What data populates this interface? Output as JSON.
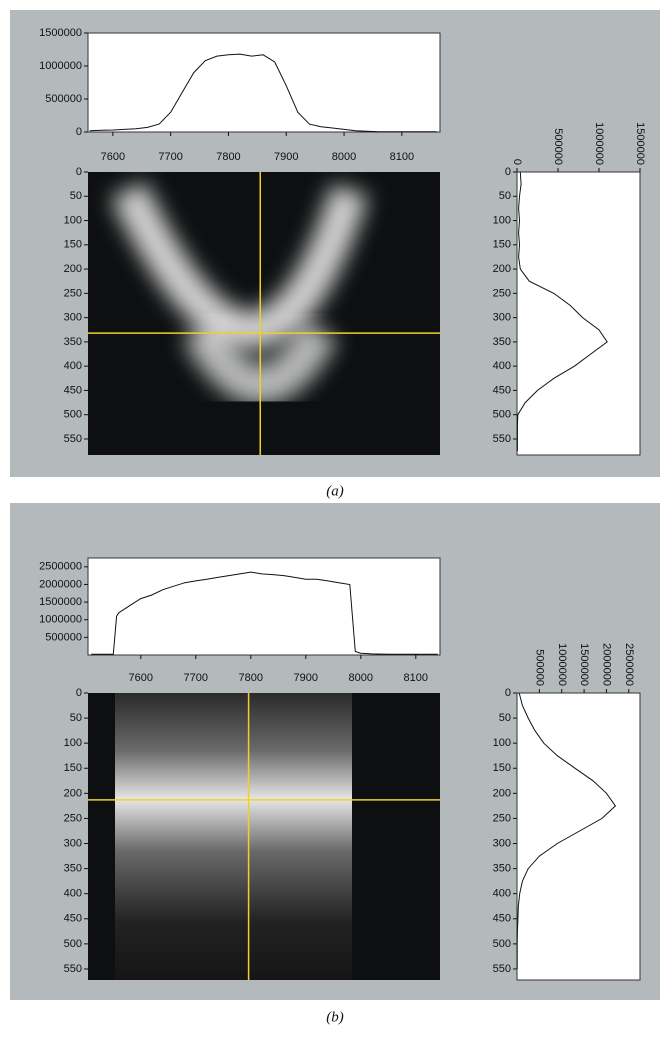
{
  "panels": [
    {
      "caption": "(a)",
      "xlim": [
        7557,
        8166
      ],
      "xticks": [
        7600,
        7700,
        7800,
        7900,
        8000,
        8100
      ],
      "top": {
        "ylim": [
          0,
          1500000
        ],
        "yticks": [
          0,
          500000,
          1000000,
          1500000
        ],
        "x": [
          7560,
          7580,
          7600,
          7620,
          7640,
          7660,
          7680,
          7700,
          7720,
          7740,
          7760,
          7780,
          7800,
          7820,
          7840,
          7860,
          7880,
          7900,
          7920,
          7940,
          7960,
          7980,
          8000,
          8020,
          8040,
          8060,
          8080,
          8100,
          8120,
          8140,
          8160
        ],
        "values": [
          20000,
          25000,
          30000,
          40000,
          50000,
          70000,
          120000,
          300000,
          600000,
          900000,
          1080000,
          1150000,
          1170000,
          1180000,
          1150000,
          1170000,
          1060000,
          700000,
          300000,
          120000,
          80000,
          60000,
          40000,
          20000,
          10000,
          5000,
          5000,
          5000,
          5000,
          5000,
          5000
        ]
      },
      "image": {
        "ylim": [
          0,
          583
        ],
        "yticks": [
          0,
          50,
          100,
          150,
          200,
          250,
          300,
          350,
          400,
          450,
          500,
          550
        ],
        "crosshair": {
          "x": 7855,
          "y": 332
        }
      },
      "side": {
        "xlim": [
          0,
          1500000
        ],
        "xticks": [
          0,
          500000,
          1000000,
          1500000
        ],
        "rows": [
          0,
          25,
          50,
          75,
          100,
          125,
          150,
          175,
          200,
          225,
          250,
          275,
          300,
          325,
          350,
          375,
          400,
          425,
          450,
          475,
          500,
          525,
          550,
          575
        ],
        "values": [
          40000,
          50000,
          30000,
          20000,
          30000,
          20000,
          30000,
          20000,
          40000,
          150000,
          450000,
          650000,
          800000,
          1000000,
          1100000,
          900000,
          700000,
          450000,
          250000,
          100000,
          10000,
          5000,
          5000,
          5000
        ]
      }
    },
    {
      "caption": "(b)",
      "xlim": [
        7504,
        8144
      ],
      "xticks": [
        7600,
        7700,
        7800,
        7900,
        8000,
        8100
      ],
      "top": {
        "ylim": [
          0,
          2750000
        ],
        "yticks": [
          500000,
          1000000,
          1500000,
          2000000,
          2500000
        ],
        "x": [
          7510,
          7530,
          7550,
          7556,
          7560,
          7580,
          7600,
          7620,
          7640,
          7660,
          7680,
          7700,
          7720,
          7740,
          7760,
          7780,
          7800,
          7820,
          7840,
          7860,
          7880,
          7900,
          7920,
          7940,
          7960,
          7980,
          7990,
          8000,
          8020,
          8060,
          8100,
          8140
        ],
        "values": [
          20000,
          20000,
          20000,
          1100000,
          1200000,
          1400000,
          1600000,
          1700000,
          1850000,
          1950000,
          2050000,
          2100000,
          2150000,
          2200000,
          2250000,
          2300000,
          2350000,
          2300000,
          2280000,
          2250000,
          2200000,
          2150000,
          2150000,
          2100000,
          2050000,
          2000000,
          100000,
          50000,
          30000,
          20000,
          20000,
          20000
        ]
      },
      "image": {
        "ylim": [
          0,
          572
        ],
        "yticks": [
          0,
          50,
          100,
          150,
          200,
          250,
          300,
          350,
          400,
          450,
          500,
          550
        ],
        "crosshair": {
          "x": 7796,
          "y": 213
        }
      },
      "side": {
        "xlim": [
          0,
          2750000
        ],
        "xticks": [
          500000,
          1000000,
          1500000,
          2000000,
          2500000
        ],
        "rows": [
          0,
          25,
          50,
          75,
          100,
          125,
          150,
          175,
          200,
          225,
          250,
          275,
          300,
          325,
          350,
          375,
          400,
          425,
          450,
          475,
          500,
          525,
          550
        ],
        "values": [
          50000,
          120000,
          250000,
          400000,
          600000,
          900000,
          1300000,
          1700000,
          2000000,
          2200000,
          1900000,
          1400000,
          900000,
          500000,
          250000,
          120000,
          60000,
          30000,
          20000,
          10000,
          5000,
          5000,
          5000
        ]
      }
    }
  ]
}
